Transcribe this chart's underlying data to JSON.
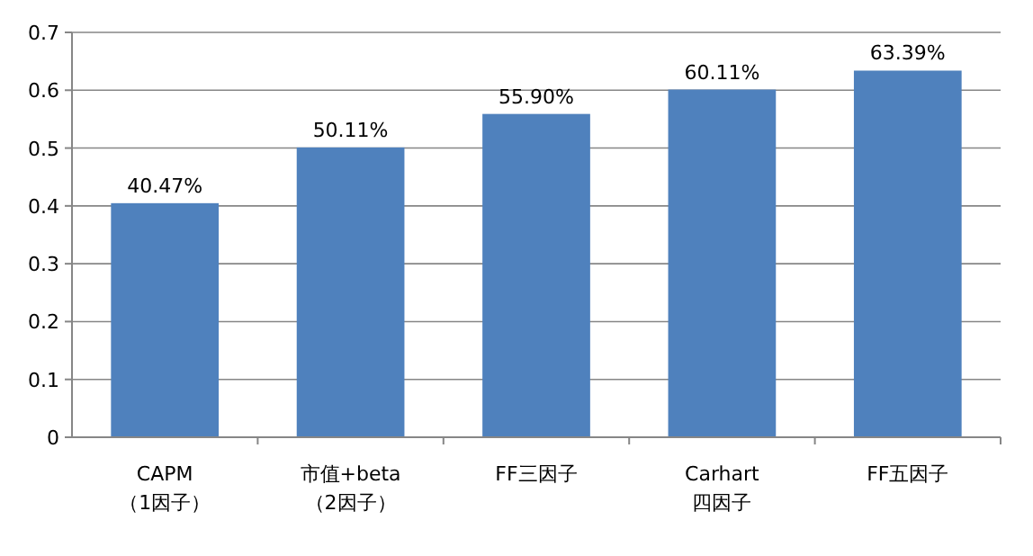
{
  "chart_data": {
    "type": "bar",
    "categories": [
      "CAPM\n（1因子）",
      "市值+beta\n（2因子）",
      "FF三因子",
      "Carhart\n四因子",
      "FF五因子"
    ],
    "values": [
      0.4047,
      0.5011,
      0.559,
      0.6011,
      0.6339
    ],
    "value_labels": [
      "40.47%",
      "50.11%",
      "55.90%",
      "60.11%",
      "63.39%"
    ],
    "color": "#4f81bd",
    "ylim": [
      0,
      0.7
    ],
    "yticks": [
      0,
      0.1,
      0.2,
      0.3,
      0.4,
      0.5,
      0.6,
      0.7
    ],
    "grid": "y"
  }
}
